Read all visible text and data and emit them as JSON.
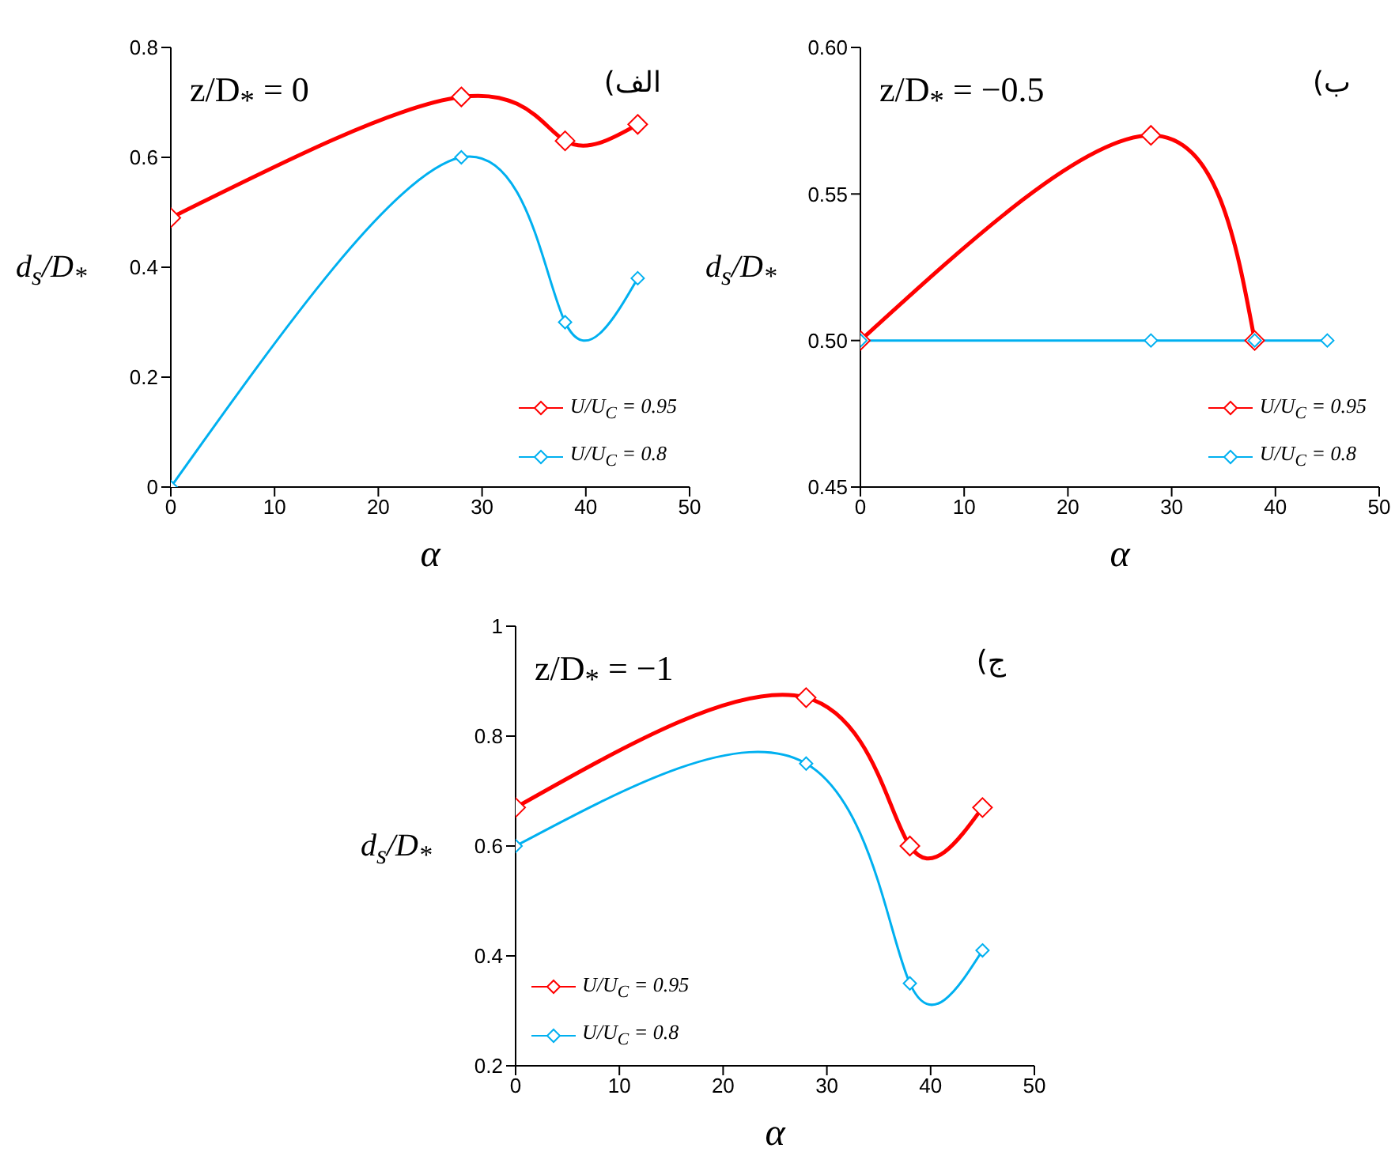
{
  "chart_data": [
    {
      "type": "line",
      "x": [
        0,
        28,
        38,
        45
      ],
      "xlabel": "α",
      "ylabel": "d$_{s}$/D$_{*}$",
      "annotations": [
        "z/D$_{*}$ = 0",
        "الف)"
      ],
      "series": [
        {
          "name": "U/U$_{C}$ = 0.95",
          "color": "#ff0000",
          "values": [
            0.49,
            0.71,
            0.63,
            0.66
          ]
        },
        {
          "name": "U/U$_{C}$ = 0.8",
          "color": "#00b0f0",
          "values": [
            0,
            0.6,
            0.3,
            0.38
          ]
        }
      ],
      "xlim": [
        0,
        50
      ],
      "xticks": [
        0,
        10,
        20,
        30,
        40,
        50
      ],
      "ylim": [
        0,
        0.8
      ],
      "yticks": [
        0,
        0.2,
        0.4,
        0.6,
        0.8
      ],
      "marker": "diamond",
      "legend": "bottom right",
      "grid": false
    },
    {
      "type": "line",
      "x": [
        0,
        28,
        38,
        45
      ],
      "xlabel": "α",
      "ylabel": "d$_{s}$/D$_{*}$",
      "annotations": [
        "z/D$_{*}$ = −0.5",
        "ب)"
      ],
      "series": [
        {
          "name": "U/U$_{C}$ = 0.95",
          "color": "#ff0000",
          "values": [
            0.5,
            0.57,
            0.5,
            null
          ]
        },
        {
          "name": "U/U$_{C}$ = 0.8",
          "color": "#00b0f0",
          "values": [
            0.5,
            0.5,
            0.5,
            0.5
          ]
        }
      ],
      "xlim": [
        0,
        50
      ],
      "xticks": [
        0,
        10,
        20,
        30,
        40,
        50
      ],
      "ylim": [
        0.45,
        0.6
      ],
      "yticks": [
        {
          "value": 0.45,
          "label": "0.45"
        },
        {
          "value": 0.5,
          "label": "0.50"
        },
        {
          "value": 0.55,
          "label": "0.55"
        },
        {
          "value": 0.6,
          "label": "0.60"
        }
      ],
      "marker": "diamond",
      "legend": "bottom right",
      "grid": false
    },
    {
      "type": "line",
      "x": [
        0,
        28,
        38,
        45
      ],
      "xlabel": "α",
      "ylabel": "d$_{s}$/D$_{*}$",
      "annotations": [
        "z/D$_{*}$ = −1",
        "ج)"
      ],
      "series": [
        {
          "name": "U/U$_{C}$ = 0.95",
          "color": "#ff0000",
          "values": [
            0.67,
            0.87,
            0.6,
            0.67
          ]
        },
        {
          "name": "U/U$_{C}$ = 0.8",
          "color": "#00b0f0",
          "values": [
            0.6,
            0.75,
            0.35,
            0.41
          ]
        }
      ],
      "xlim": [
        0,
        50
      ],
      "xticks": [
        0,
        10,
        20,
        30,
        40,
        50
      ],
      "ylim": [
        0.2,
        1
      ],
      "yticks": [
        0.2,
        0.4,
        0.6,
        0.8,
        1
      ],
      "marker": "diamond",
      "legend": "bottom left",
      "grid": false
    }
  ]
}
